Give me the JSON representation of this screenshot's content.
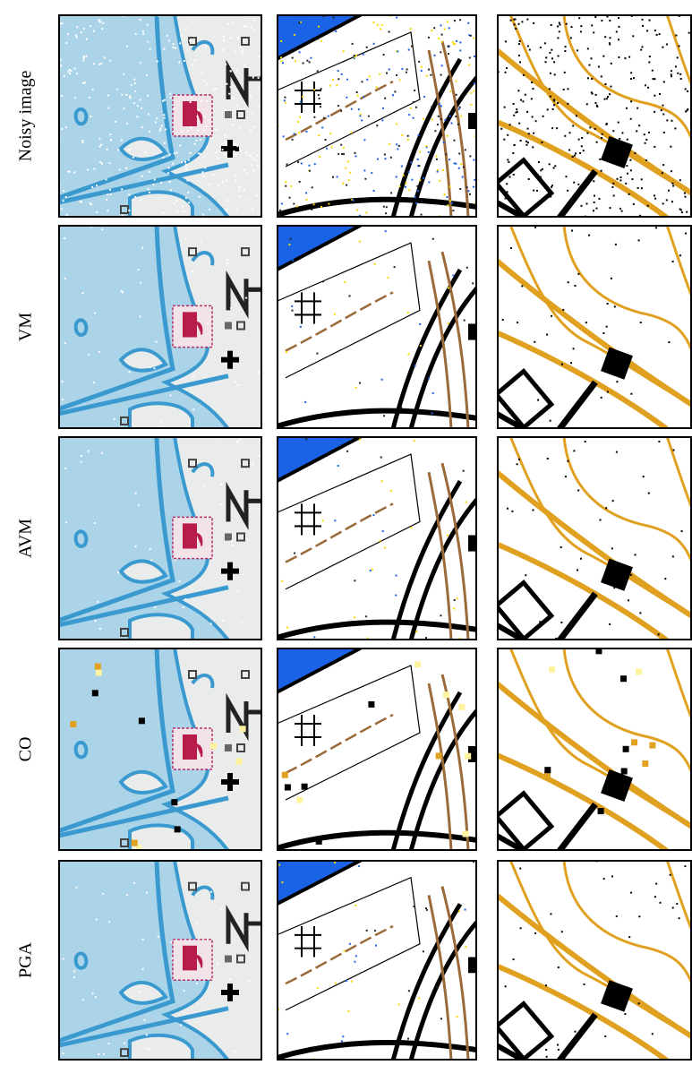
{
  "rows": [
    "Noisy image",
    "VM",
    "AVM",
    "CO",
    "PGA"
  ]
}
